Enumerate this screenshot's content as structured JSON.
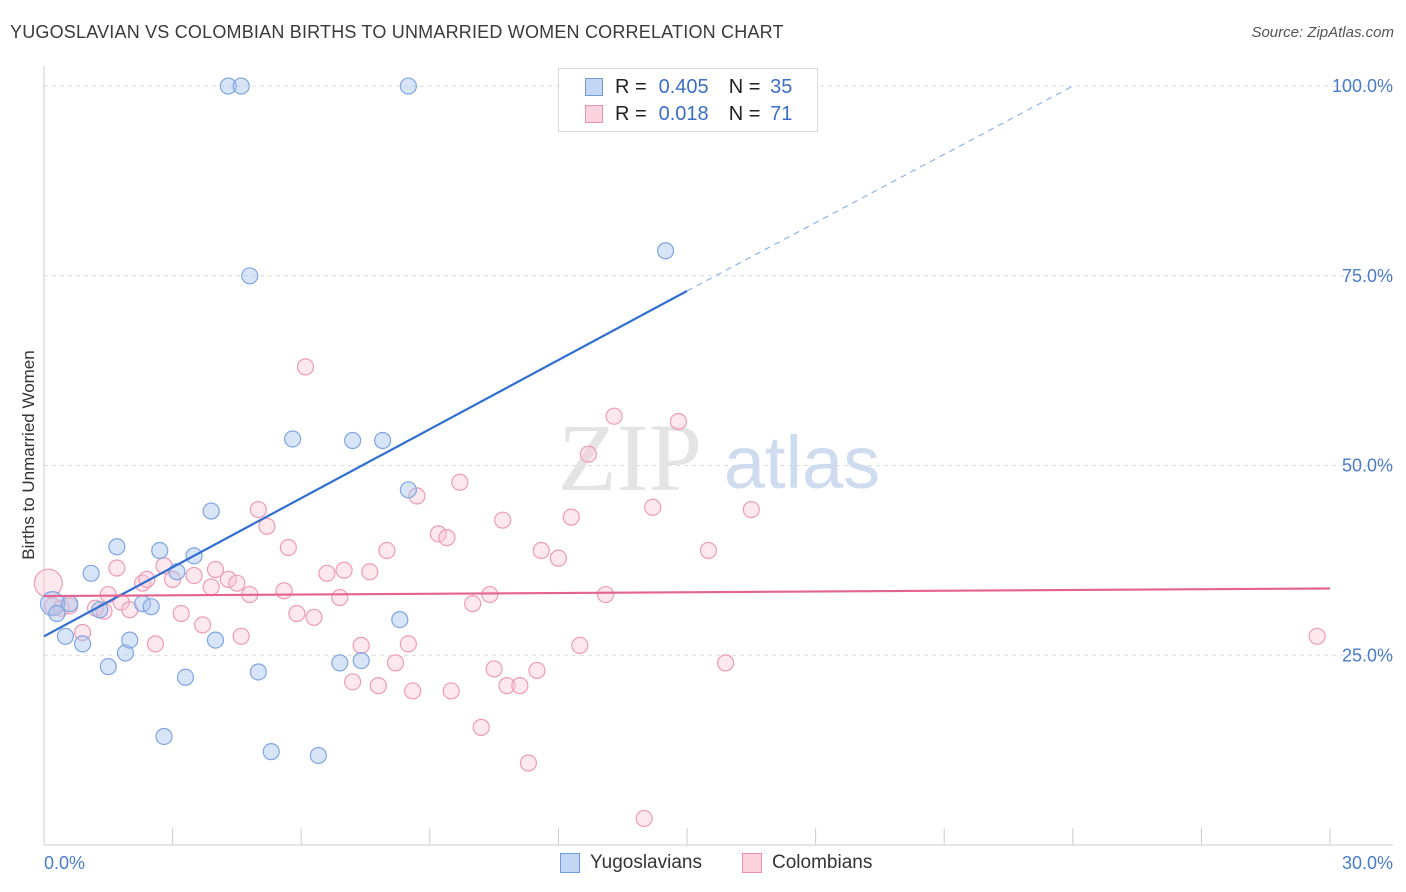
{
  "header": {
    "title": "YUGOSLAVIAN VS COLOMBIAN BIRTHS TO UNMARRIED WOMEN CORRELATION CHART",
    "source": "Source: ZipAtlas.com"
  },
  "watermark": {
    "zip": "ZIP",
    "atlas": "atlas"
  },
  "legend": {
    "rows": [
      {
        "r_label": "R =",
        "r_value": "0.405",
        "n_label": "N =",
        "n_value": "35",
        "color": "#a9c4ee",
        "border": "#6e99db"
      },
      {
        "r_label": "R =",
        "r_value": "0.018",
        "n_label": "N =",
        "n_value": "71",
        "color": "#f9c5d5",
        "border": "#ea8fae"
      }
    ]
  },
  "bottom_legend": {
    "items": [
      {
        "label": "Yugoslavians",
        "color": "#c3d7f4",
        "border": "#6e99db"
      },
      {
        "label": "Colombians",
        "color": "#fad3df",
        "border": "#ea8fae"
      }
    ]
  },
  "chart_data": {
    "type": "scatter",
    "title": "YUGOSLAVIAN VS COLOMBIAN BIRTHS TO UNMARRIED WOMEN CORRELATION CHART",
    "xlabel": "",
    "ylabel": "Births to Unmarried Women",
    "xlim": [
      0,
      30
    ],
    "ylim": [
      0,
      100
    ],
    "x_tick_labels": {
      "min": "0.0%",
      "max": "30.0%"
    },
    "y_ticks": [
      {
        "value": 25,
        "label": "25.0%"
      },
      {
        "value": 50,
        "label": "50.0%"
      },
      {
        "value": 75,
        "label": "75.0%"
      },
      {
        "value": 100,
        "label": "100.0%"
      }
    ],
    "series": [
      {
        "name": "Yugoslavians",
        "color": "#8fb3e8",
        "line_color": "#2f6fd0",
        "r": 0.405,
        "n": 35,
        "trend": {
          "x0": 0.0,
          "y0": 27.5,
          "x1": 15.0,
          "y1": 73.0,
          "dash_to_x": 24.0,
          "dash_to_y": 100.0
        },
        "points": [
          [
            0.2,
            31.8
          ],
          [
            0.3,
            30.5
          ],
          [
            0.5,
            27.5
          ],
          [
            0.6,
            31.8
          ],
          [
            0.9,
            26.5
          ],
          [
            1.1,
            35.8
          ],
          [
            1.3,
            31.0
          ],
          [
            1.5,
            23.5
          ],
          [
            1.7,
            39.3
          ],
          [
            1.9,
            25.3
          ],
          [
            2.0,
            27.0
          ],
          [
            2.3,
            31.8
          ],
          [
            2.5,
            31.4
          ],
          [
            2.7,
            38.8
          ],
          [
            2.8,
            14.3
          ],
          [
            3.1,
            36.0
          ],
          [
            3.3,
            22.1
          ],
          [
            3.5,
            38.1
          ],
          [
            3.9,
            44.0
          ],
          [
            4.0,
            27.0
          ],
          [
            4.3,
            100.0
          ],
          [
            4.6,
            100.0
          ],
          [
            4.8,
            75.0
          ],
          [
            5.0,
            22.8
          ],
          [
            5.3,
            12.3
          ],
          [
            5.8,
            53.5
          ],
          [
            6.4,
            11.8
          ],
          [
            6.9,
            24.0
          ],
          [
            7.2,
            53.3
          ],
          [
            7.4,
            24.3
          ],
          [
            7.9,
            53.3
          ],
          [
            8.3,
            29.7
          ],
          [
            8.5,
            46.8
          ],
          [
            8.5,
            100.0
          ],
          [
            14.5,
            78.3
          ]
        ]
      },
      {
        "name": "Colombians",
        "color": "#f4b3c8",
        "line_color": "#e4638f",
        "r": 0.018,
        "n": 71,
        "trend": {
          "x0": 0.0,
          "y0": 32.8,
          "x1": 30.0,
          "y1": 33.8
        },
        "points": [
          [
            0.1,
            34.5
          ],
          [
            0.2,
            31.5
          ],
          [
            0.4,
            31.2
          ],
          [
            0.6,
            31.5
          ],
          [
            0.9,
            28.0
          ],
          [
            1.2,
            31.2
          ],
          [
            1.4,
            30.8
          ],
          [
            1.5,
            33.0
          ],
          [
            1.7,
            36.5
          ],
          [
            1.8,
            32.0
          ],
          [
            2.0,
            31.0
          ],
          [
            2.3,
            34.5
          ],
          [
            2.4,
            35.0
          ],
          [
            2.6,
            26.5
          ],
          [
            2.8,
            36.8
          ],
          [
            3.0,
            35.0
          ],
          [
            3.2,
            30.5
          ],
          [
            3.5,
            35.5
          ],
          [
            3.7,
            29.0
          ],
          [
            3.9,
            34.0
          ],
          [
            4.0,
            36.3
          ],
          [
            4.3,
            35.0
          ],
          [
            4.5,
            34.5
          ],
          [
            4.6,
            27.5
          ],
          [
            4.8,
            33.0
          ],
          [
            5.0,
            44.2
          ],
          [
            5.2,
            42.0
          ],
          [
            5.6,
            33.5
          ],
          [
            5.7,
            39.2
          ],
          [
            5.9,
            30.5
          ],
          [
            6.1,
            63.0
          ],
          [
            6.3,
            30.0
          ],
          [
            6.6,
            35.8
          ],
          [
            6.9,
            32.6
          ],
          [
            7.0,
            36.2
          ],
          [
            7.2,
            21.5
          ],
          [
            7.4,
            26.3
          ],
          [
            7.6,
            36.0
          ],
          [
            7.8,
            21.0
          ],
          [
            8.0,
            38.8
          ],
          [
            8.2,
            24.0
          ],
          [
            8.5,
            26.5
          ],
          [
            8.6,
            20.3
          ],
          [
            8.7,
            46.0
          ],
          [
            9.2,
            41.0
          ],
          [
            9.4,
            40.5
          ],
          [
            9.5,
            20.3
          ],
          [
            9.7,
            47.8
          ],
          [
            10.0,
            31.8
          ],
          [
            10.2,
            15.5
          ],
          [
            10.4,
            33.0
          ],
          [
            10.5,
            23.2
          ],
          [
            10.7,
            42.8
          ],
          [
            10.8,
            21.0
          ],
          [
            11.1,
            21.0
          ],
          [
            11.3,
            10.8
          ],
          [
            11.5,
            23.0
          ],
          [
            11.6,
            38.8
          ],
          [
            12.0,
            37.8
          ],
          [
            12.3,
            43.2
          ],
          [
            12.5,
            26.3
          ],
          [
            12.7,
            51.5
          ],
          [
            13.1,
            33.0
          ],
          [
            13.3,
            56.5
          ],
          [
            14.0,
            3.5
          ],
          [
            14.2,
            44.5
          ],
          [
            14.8,
            55.8
          ],
          [
            15.5,
            38.8
          ],
          [
            15.9,
            24.0
          ],
          [
            16.5,
            44.2
          ],
          [
            29.7,
            27.5
          ]
        ]
      }
    ],
    "grid": true,
    "legend_position": "top-center"
  }
}
